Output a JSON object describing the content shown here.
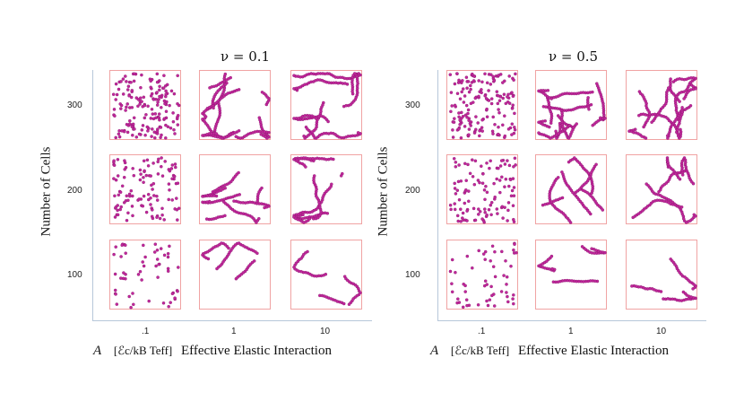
{
  "panels": [
    {
      "title": "ν = 0.1",
      "ylabel": "Number of Cells",
      "yticks": [
        "300",
        "200",
        "100"
      ],
      "xticks": [
        ".1",
        "1",
        "10"
      ],
      "xlabel_symbol": "A",
      "xlabel_units": "[ℰc/kB Teff]",
      "xlabel_text": "Effective Elastic Interaction"
    },
    {
      "title": "ν = 0.5",
      "ylabel": "Number of Cells",
      "yticks": [
        "300",
        "200",
        "100"
      ],
      "xticks": [
        ".1",
        "1",
        "10"
      ],
      "xlabel_symbol": "A",
      "xlabel_units": "[ℰc/kB Teff]",
      "xlabel_text": "Effective Elastic Interaction"
    }
  ],
  "colors": {
    "dot": "#c0279b",
    "dot_stroke": "#7a1060",
    "frame": "#f0a3a3",
    "axis": "#b7c7da"
  }
}
